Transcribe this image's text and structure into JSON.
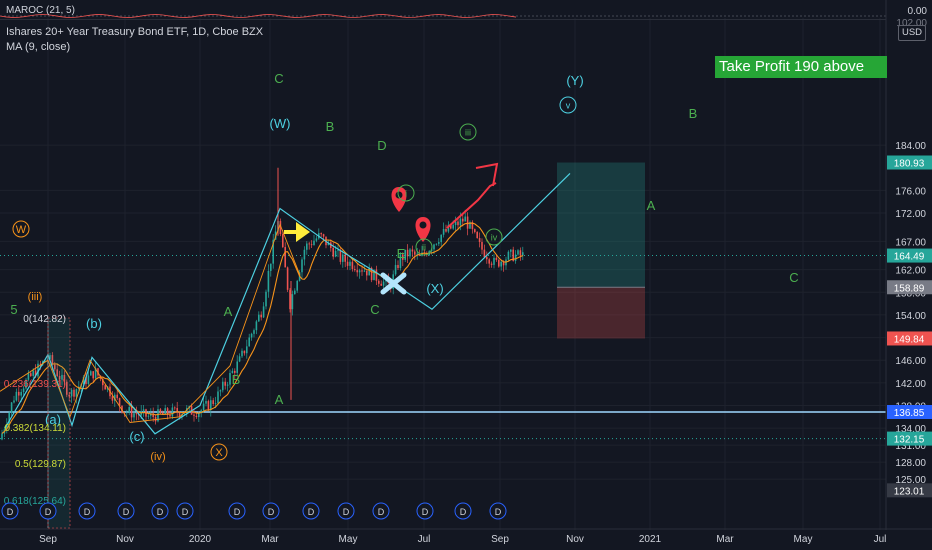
{
  "header": {
    "indicator_label": "MAROC (21, 5)",
    "symbol_title": "Ishares 20+ Year Treasury Bond ETF, 1D, Cboe BZX",
    "ma_label": "MA (9, close)"
  },
  "currency": "USD",
  "banner": "Take Profit 190 above",
  "price_axis": {
    "indicator_ticks": [
      "0.00",
      "102.00"
    ],
    "ticks": [
      "184.00",
      "176.00",
      "172.00",
      "167.00",
      "162.00",
      "158.00",
      "154.00",
      "150.00",
      "146.00",
      "142.00",
      "138.00",
      "134.00",
      "131.00",
      "128.00",
      "125.00",
      "123.01"
    ],
    "tags": [
      {
        "label": "180.93",
        "value": 180.93,
        "color": "#26a69a"
      },
      {
        "label": "164.49",
        "value": 164.49,
        "color": "#26a69a"
      },
      {
        "label": "158.89",
        "value": 158.89,
        "color": "#787b86"
      },
      {
        "label": "149.84",
        "value": 149.84,
        "color": "#ef5350"
      },
      {
        "label": "136.85",
        "value": 136.85,
        "color": "#2962ff"
      },
      {
        "label": "132.15",
        "value": 132.15,
        "color": "#26a69a"
      },
      {
        "label": "123.01",
        "value": 123.01,
        "color": "#363a45"
      }
    ]
  },
  "time_axis": [
    "Sep",
    "Nov",
    "2020",
    "Mar",
    "May",
    "Jul",
    "Sep",
    "Nov",
    "2021",
    "Mar",
    "May",
    "Jul"
  ],
  "dividend_marker": "D",
  "fib_labels": [
    "0(142.82)",
    "0.236(139.31)",
    "0.382(134.11)",
    "0.5(129.87)",
    "0.618(125.64)"
  ],
  "wave_labels": {
    "green": [
      "5",
      "C",
      "B",
      "D",
      "A",
      "B",
      "A",
      "C",
      "E",
      "A",
      "B",
      "C"
    ],
    "orange": [
      "(iii)",
      "W",
      "(iv)",
      "X"
    ],
    "teal": [
      "(b)",
      "(a)",
      "(c)",
      "(W)",
      "(X)",
      "(Y)"
    ],
    "circled": [
      "iii",
      "i",
      "ii",
      "iv",
      "v"
    ]
  },
  "chart_data": {
    "type": "line",
    "title": "Ishares 20+ Year Treasury Bond ETF, 1D, Cboe BZX",
    "xlabel": "",
    "ylabel": "",
    "ylim": [
      123,
      186
    ],
    "x": [
      "2019-08",
      "2019-09",
      "2019-10",
      "2019-11",
      "2019-12",
      "2020-01",
      "2020-02",
      "2020-03",
      "2020-04",
      "2020-05",
      "2020-06",
      "2020-07",
      "2020-08",
      "2020-09"
    ],
    "series": [
      {
        "name": "",
        "values": [
          140.0,
          146.5,
          142.0,
          137.5,
          135.0,
          138.5,
          152.0,
          171.0,
          167.0,
          163.5,
          160.0,
          165.5,
          171.5,
          164.5
        ]
      }
    ],
    "price_levels": [
      180.93,
      164.49,
      158.89,
      149.84,
      136.85,
      132.15,
      123.01
    ],
    "take_profit_zone": {
      "from": 158.89,
      "to": 180.93
    },
    "stop_loss_zone": {
      "from": 149.84,
      "to": 158.89
    }
  }
}
